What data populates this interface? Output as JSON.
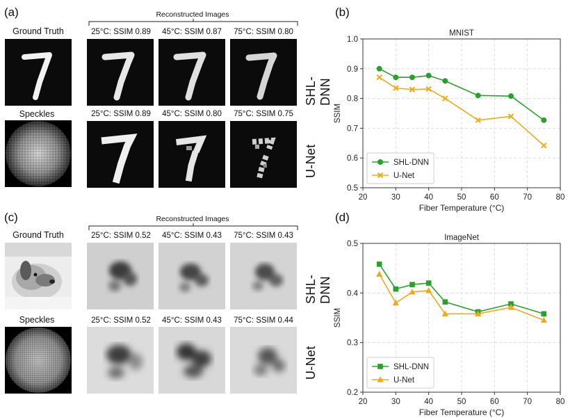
{
  "panels": {
    "a": "(a)",
    "b": "(b)",
    "c": "(c)",
    "d": "(d)"
  },
  "left": {
    "ground_truth": "Ground Truth",
    "speckles": "Speckles",
    "reconstructed": "Reconstructed Images",
    "shl_dnn": "SHL-DNN",
    "unet": "U-Net",
    "mnist_shl_caps": [
      "25°C: SSIM 0.89",
      "45°C: SSIM 0.87",
      "75°C: SSIM 0.80"
    ],
    "mnist_unet_caps": [
      "25°C: SSIM 0.89",
      "45°C: SSIM 0.80",
      "75°C: SSIM 0.75"
    ],
    "imagenet_shl_caps": [
      "25°C: SSIM 0.52",
      "45°C: SSIM 0.43",
      "75°C: SSIM 0.43"
    ],
    "imagenet_unet_caps": [
      "25°C: SSIM 0.52",
      "45°C: SSIM 0.43",
      "75°C: SSIM 0.44"
    ]
  },
  "chart_data": [
    {
      "type": "line",
      "title": "MNIST",
      "xlabel": "Fiber Temperature (°C)",
      "ylabel": "SSIM",
      "xlim": [
        20,
        80
      ],
      "ylim": [
        0.5,
        1.0
      ],
      "xticks": [
        20,
        30,
        40,
        50,
        60,
        70,
        80
      ],
      "yticks": [
        0.5,
        0.6,
        0.7,
        0.8,
        0.9,
        1.0
      ],
      "ytick_labels": [
        "0.5",
        "0.6",
        "0.7",
        "0.8",
        "0.9",
        "1.0"
      ],
      "grid": true,
      "legend": "bottom-left",
      "x": [
        25,
        30,
        35,
        40,
        45,
        55,
        65,
        75
      ],
      "series": [
        {
          "name": "SHL-DNN",
          "color": "#2ca02c",
          "marker": "circle",
          "values": [
            0.9,
            0.871,
            0.871,
            0.877,
            0.859,
            0.81,
            0.808,
            0.727
          ]
        },
        {
          "name": "U-Net",
          "color": "#f0a81c",
          "marker": "x",
          "values": [
            0.871,
            0.835,
            0.83,
            0.832,
            0.8,
            0.727,
            0.74,
            0.642
          ]
        }
      ]
    },
    {
      "type": "line",
      "title": "ImageNet",
      "xlabel": "Fiber Temperature (°C)",
      "ylabel": "SSIM",
      "xlim": [
        20,
        80
      ],
      "ylim": [
        0.2,
        0.5
      ],
      "xticks": [
        20,
        30,
        40,
        50,
        60,
        70,
        80
      ],
      "yticks": [
        0.2,
        0.3,
        0.4,
        0.5
      ],
      "ytick_labels": [
        "0.2",
        "0.3",
        "0.4",
        "0.5"
      ],
      "grid": true,
      "legend": "bottom-left",
      "x": [
        25,
        30,
        35,
        40,
        45,
        55,
        65,
        75
      ],
      "series": [
        {
          "name": "SHL-DNN",
          "color": "#2ca02c",
          "marker": "square",
          "values": [
            0.458,
            0.408,
            0.417,
            0.42,
            0.382,
            0.362,
            0.378,
            0.358
          ]
        },
        {
          "name": "U-Net",
          "color": "#f0a81c",
          "marker": "triangle",
          "values": [
            0.438,
            0.38,
            0.402,
            0.405,
            0.358,
            0.358,
            0.371,
            0.345
          ]
        }
      ]
    }
  ]
}
